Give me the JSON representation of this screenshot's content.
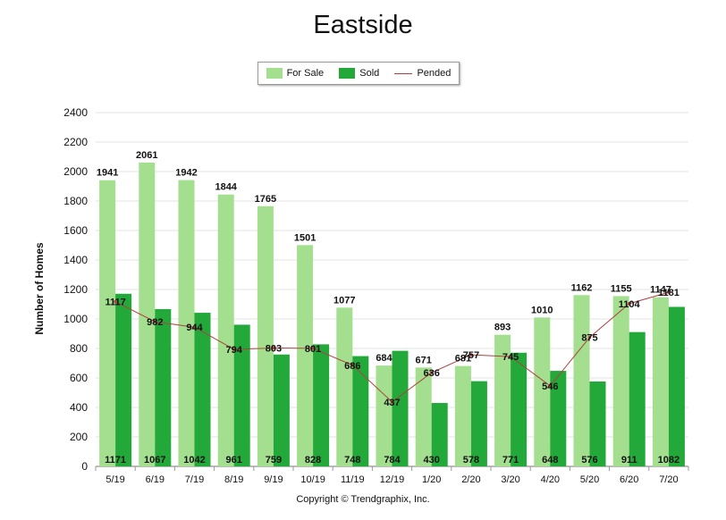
{
  "chart_data": {
    "type": "bar",
    "title": "Eastside",
    "ylabel": "Number of Homes",
    "xlabel": "",
    "ylim": [
      0,
      2400
    ],
    "yticks": [
      0,
      200,
      400,
      600,
      800,
      1000,
      1200,
      1400,
      1600,
      1800,
      2000,
      2200,
      2400
    ],
    "grid": true,
    "legend_position": "top-center",
    "categories": [
      "5/19",
      "6/19",
      "7/19",
      "8/19",
      "9/19",
      "10/19",
      "11/19",
      "12/19",
      "1/20",
      "2/20",
      "3/20",
      "4/20",
      "5/20",
      "6/20",
      "7/20"
    ],
    "series": [
      {
        "name": "For Sale",
        "type": "bar",
        "color": "#a3df8e",
        "values": [
          1941,
          2061,
          1942,
          1844,
          1765,
          1501,
          1077,
          684,
          671,
          681,
          893,
          1010,
          1162,
          1155,
          1147
        ]
      },
      {
        "name": "Sold",
        "type": "bar",
        "color": "#22a93a",
        "values": [
          1171,
          1067,
          1042,
          961,
          759,
          828,
          748,
          784,
          430,
          578,
          771,
          648,
          576,
          911,
          1082
        ]
      },
      {
        "name": "Pended",
        "type": "line",
        "color": "#b0413e",
        "values": [
          1117,
          982,
          944,
          794,
          803,
          801,
          686,
          437,
          636,
          757,
          745,
          546,
          875,
          1104,
          1181
        ]
      }
    ],
    "footer": "Copyright © Trendgraphix, Inc."
  }
}
